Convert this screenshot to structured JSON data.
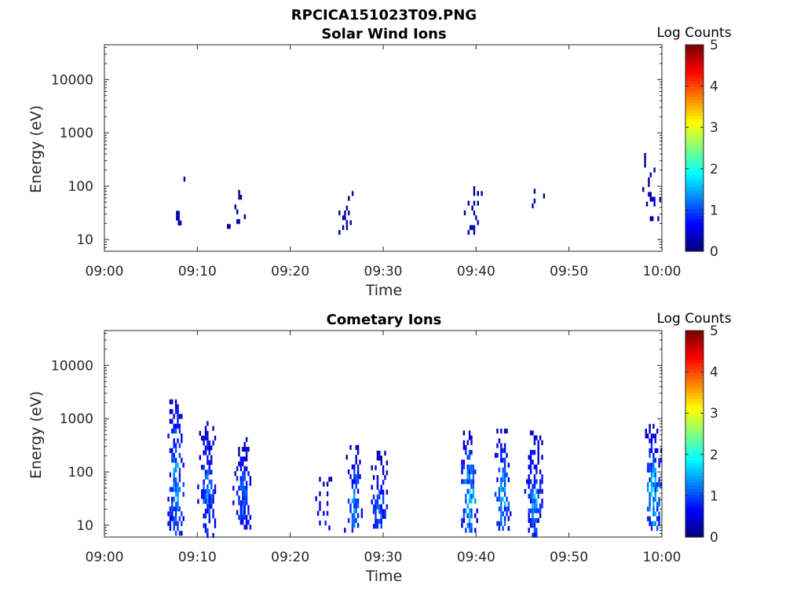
{
  "figure": {
    "title": "RPCICA151023T09.PNG"
  },
  "chart_data": [
    {
      "type": "heatmap",
      "title": "Solar Wind Ions",
      "xlabel": "Time",
      "ylabel": "Energy (eV)",
      "x_ticks": [
        "09:00",
        "09:10",
        "09:20",
        "09:30",
        "09:40",
        "09:50",
        "10:00"
      ],
      "xlim_minutes": [
        0,
        60
      ],
      "y_scale": "log",
      "y_ticks": [
        "10",
        "100",
        "1000",
        "10000"
      ],
      "ylim": [
        6,
        45000
      ],
      "colorbar": {
        "label": "Log Counts",
        "ticks": [
          "0",
          "1",
          "2",
          "3",
          "4",
          "5"
        ],
        "range": [
          0,
          5
        ],
        "colormap": "jet"
      },
      "clusters": [
        {
          "t": 7.9,
          "e": [
            18,
            150
          ],
          "intensity": 0.3
        },
        {
          "t": 14.2,
          "e": [
            17,
            85
          ],
          "intensity": 0.3
        },
        {
          "t": 26.0,
          "e": [
            12,
            100
          ],
          "intensity": 0.3
        },
        {
          "t": 39.7,
          "e": [
            12,
            100
          ],
          "intensity": 0.4
        },
        {
          "t": 46.4,
          "e": [
            40,
            110
          ],
          "intensity": 0.3
        },
        {
          "t": 58.9,
          "e": [
            18,
            420
          ],
          "intensity": 0.4
        }
      ]
    },
    {
      "type": "heatmap",
      "title": "Cometary Ions",
      "xlabel": "Time",
      "ylabel": "Energy (eV)",
      "x_ticks": [
        "09:00",
        "09:10",
        "09:20",
        "09:30",
        "09:40",
        "09:50",
        "10:00"
      ],
      "xlim_minutes": [
        0,
        60
      ],
      "y_scale": "log",
      "y_ticks": [
        "10",
        "100",
        "1000",
        "10000"
      ],
      "ylim": [
        6,
        45000
      ],
      "colorbar": {
        "label": "Log Counts",
        "ticks": [
          "0",
          "1",
          "2",
          "3",
          "4",
          "5"
        ],
        "range": [
          0,
          5
        ],
        "colormap": "jet"
      },
      "clusters": [
        {
          "t": 7.6,
          "e": [
            6,
            2300
          ],
          "intensity": 1.7
        },
        {
          "t": 11.0,
          "e": [
            6,
            900
          ],
          "intensity": 1.4
        },
        {
          "t": 14.8,
          "e": [
            8,
            450
          ],
          "intensity": 1.3
        },
        {
          "t": 23.5,
          "e": [
            8,
            100
          ],
          "intensity": 1.0
        },
        {
          "t": 26.8,
          "e": [
            8,
            320
          ],
          "intensity": 1.6
        },
        {
          "t": 29.5,
          "e": [
            8,
            250
          ],
          "intensity": 1.3
        },
        {
          "t": 39.2,
          "e": [
            8,
            600
          ],
          "intensity": 1.8
        },
        {
          "t": 42.8,
          "e": [
            8,
            650
          ],
          "intensity": 1.7
        },
        {
          "t": 46.2,
          "e": [
            6,
            600
          ],
          "intensity": 1.5
        },
        {
          "t": 59.0,
          "e": [
            8,
            800
          ],
          "intensity": 1.9
        }
      ]
    }
  ]
}
